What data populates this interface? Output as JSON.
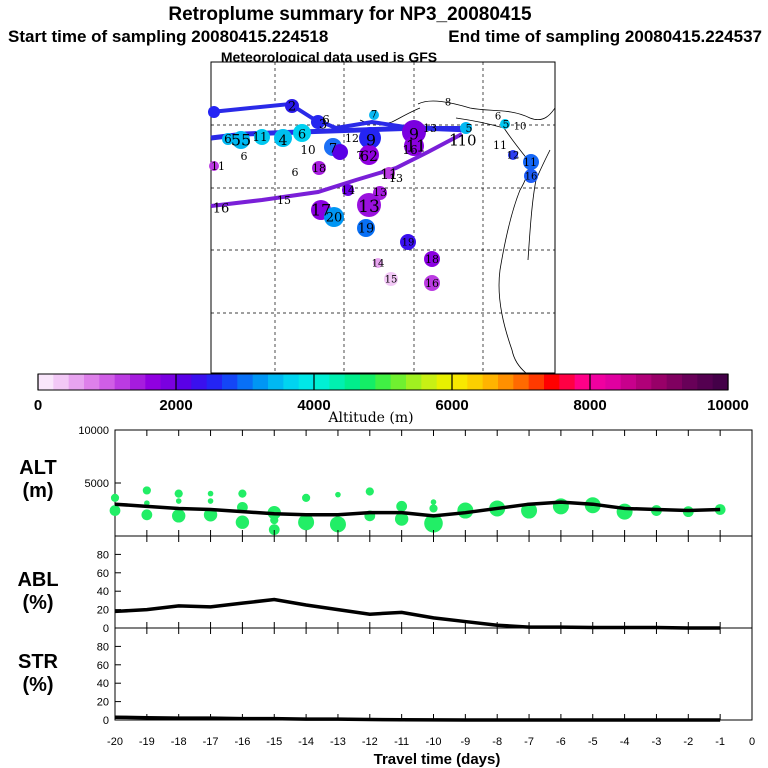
{
  "header": {
    "title": "Retroplume summary for NP3_20080415",
    "start_label": "Start time of sampling 20080415.224518",
    "end_label": "End time of sampling 20080415.224537",
    "met_label": "Meteorological data used is GFS"
  },
  "colors": {
    "path_blue": "#2a2ae8",
    "path_purple": "#7a1fd8",
    "bright_green": "#22ee66",
    "line_black": "#000000"
  },
  "chart_data": [
    {
      "type": "scatter",
      "name": "retroplume-map",
      "title": "Retroplume summary for NP3_20080415",
      "points": [
        {
          "label": "1",
          "lon_idx": 7.0,
          "lat_idx": 8.5,
          "alt": 3000,
          "size": 1
        },
        {
          "label": "2",
          "lon_idx": 6.2,
          "lat_idx": 7.6,
          "alt": 2500,
          "size": 2
        },
        {
          "label": "3",
          "lon_idx": 5.9,
          "lat_idx": 8.4,
          "alt": 2200,
          "size": 2
        },
        {
          "label": "4",
          "lon_idx": 4.5,
          "lat_idx": 7.8,
          "alt": 3300,
          "size": 2
        },
        {
          "label": "5",
          "lon_idx": 1.3,
          "lat_idx": 7.8,
          "alt": 3600,
          "size": 2
        },
        {
          "label": "6",
          "lon_idx": 5.8,
          "lat_idx": 8.2,
          "alt": 3700,
          "size": 1
        },
        {
          "label": "7",
          "lon_idx": 5.3,
          "lat_idx": 7.8,
          "alt": 3200,
          "size": 2
        },
        {
          "label": "8",
          "lon_idx": 6.6,
          "lat_idx": 10.5,
          "alt": 0,
          "size": 0
        },
        {
          "label": "9",
          "lon_idx": 6.8,
          "lat_idx": 8.5,
          "alt": 1500,
          "size": 3
        },
        {
          "label": "10",
          "lon_idx": 7.8,
          "lat_idx": 8.5,
          "alt": 2200,
          "size": 1
        },
        {
          "label": "11",
          "lon_idx": 6.0,
          "lat_idx": 7.0,
          "alt": 1600,
          "size": 2
        },
        {
          "label": "12",
          "lon_idx": 5.5,
          "lat_idx": 7.2,
          "alt": 1600,
          "size": 1
        },
        {
          "label": "13",
          "lon_idx": 4.9,
          "lat_idx": 5.6,
          "alt": 1400,
          "size": 3
        },
        {
          "label": "14",
          "lon_idx": 5.2,
          "lat_idx": 2.6,
          "alt": 700,
          "size": 0
        },
        {
          "label": "15",
          "lon_idx": 5.3,
          "lat_idx": 1.9,
          "alt": 400,
          "size": 0
        },
        {
          "label": "16",
          "lon_idx": 6.2,
          "lat_idx": 1.6,
          "alt": 1600,
          "size": 1
        },
        {
          "label": "17",
          "lon_idx": 4.1,
          "lat_idx": 5.8,
          "alt": 1500,
          "size": 3
        },
        {
          "label": "18",
          "lon_idx": 3.8,
          "lat_idx": 6.4,
          "alt": 1600,
          "size": 1
        },
        {
          "label": "19",
          "lon_idx": 4.6,
          "lat_idx": 4.8,
          "alt": 3200,
          "size": 2
        },
        {
          "label": "20",
          "lon_idx": 4.4,
          "lat_idx": 5.0,
          "alt": 3300,
          "size": 2
        }
      ],
      "map_labels": [
        "1",
        "2",
        "3",
        "4",
        "5",
        "6",
        "7",
        "8",
        "9",
        "10",
        "11",
        "12",
        "13",
        "14",
        "15",
        "16",
        "17",
        "18",
        "19",
        "20",
        "55",
        "6",
        "10",
        "11",
        "6",
        "12",
        "11",
        "10",
        "11",
        "13",
        "11",
        "15",
        "16",
        "18",
        "17",
        "20",
        "6",
        "14",
        "16",
        "13",
        "19",
        "18",
        "19",
        "15",
        "15",
        "16",
        "9",
        "12",
        "7"
      ]
    },
    {
      "type": "colorbar",
      "name": "altitude-colorbar",
      "xlabel": "Altitude (m)",
      "range": [
        0,
        10000
      ],
      "tick_labels": [
        "0",
        "2000",
        "4000",
        "6000",
        "8000",
        "10000"
      ],
      "colors": [
        "#f9e6fb",
        "#f2c8f6",
        "#e8a4f0",
        "#de80ea",
        "#d05ee6",
        "#bb3be2",
        "#a61cde",
        "#9000e0",
        "#7a00e0",
        "#5a00e6",
        "#3a10ee",
        "#2424f4",
        "#1446f6",
        "#0870f6",
        "#0096f4",
        "#00b8f2",
        "#00d4f0",
        "#00e8e8",
        "#00f0d4",
        "#00f0b0",
        "#00ee8c",
        "#14ee66",
        "#40f044",
        "#70f030",
        "#a0f020",
        "#c8f014",
        "#e8f000",
        "#f8e800",
        "#fcd000",
        "#ffb400",
        "#ff9000",
        "#ff6a00",
        "#ff3a00",
        "#ff0000",
        "#ff0044",
        "#ff0088",
        "#f000a0",
        "#e000a0",
        "#c8008c",
        "#b00078",
        "#980068",
        "#800060",
        "#680058",
        "#540050",
        "#440048"
      ]
    },
    {
      "type": "line",
      "name": "alt-panel",
      "ylabel": "ALT\n(m)",
      "ylabel_line1": "ALT",
      "ylabel_line2": "(m)",
      "ylim": [
        0,
        10000
      ],
      "ytick_labels": [
        "10000",
        "5000"
      ],
      "x": [
        -20,
        -19,
        -18,
        -17,
        -16,
        -15,
        -14,
        -13,
        -12,
        -11,
        -10,
        -9,
        -8,
        -7,
        -6,
        -5,
        -4,
        -3,
        -2,
        -1
      ],
      "series": [
        {
          "name": "mean altitude",
          "values": [
            3000,
            2800,
            2600,
            2500,
            2300,
            2100,
            2000,
            2000,
            2200,
            2200,
            1900,
            2200,
            2600,
            3000,
            3200,
            3000,
            2600,
            2500,
            2400,
            2500
          ]
        }
      ],
      "scatter": [
        {
          "x": -20,
          "y": 3600,
          "s": 2
        },
        {
          "x": -20,
          "y": 2400,
          "s": 3
        },
        {
          "x": -19,
          "y": 4300,
          "s": 2
        },
        {
          "x": -19,
          "y": 3100,
          "s": 1
        },
        {
          "x": -19,
          "y": 2000,
          "s": 3
        },
        {
          "x": -18,
          "y": 4000,
          "s": 2
        },
        {
          "x": -18,
          "y": 3300,
          "s": 1
        },
        {
          "x": -18,
          "y": 1900,
          "s": 4
        },
        {
          "x": -17,
          "y": 4000,
          "s": 1
        },
        {
          "x": -17,
          "y": 3300,
          "s": 1
        },
        {
          "x": -17,
          "y": 2000,
          "s": 4
        },
        {
          "x": -16,
          "y": 4000,
          "s": 2
        },
        {
          "x": -16,
          "y": 2700,
          "s": 3
        },
        {
          "x": -16,
          "y": 1300,
          "s": 4
        },
        {
          "x": -15,
          "y": 2200,
          "s": 4
        },
        {
          "x": -15,
          "y": 1500,
          "s": 2
        },
        {
          "x": -15,
          "y": 600,
          "s": 3
        },
        {
          "x": -14,
          "y": 3600,
          "s": 2
        },
        {
          "x": -14,
          "y": 1300,
          "s": 5
        },
        {
          "x": -13,
          "y": 3900,
          "s": 1
        },
        {
          "x": -13,
          "y": 1100,
          "s": 5
        },
        {
          "x": -12,
          "y": 4200,
          "s": 2
        },
        {
          "x": -12,
          "y": 1900,
          "s": 3
        },
        {
          "x": -11,
          "y": 2800,
          "s": 3
        },
        {
          "x": -11,
          "y": 1600,
          "s": 4
        },
        {
          "x": -10,
          "y": 3200,
          "s": 1
        },
        {
          "x": -10,
          "y": 2600,
          "s": 2
        },
        {
          "x": -10,
          "y": 1200,
          "s": 6
        },
        {
          "x": -9,
          "y": 2400,
          "s": 5
        },
        {
          "x": -8,
          "y": 2600,
          "s": 5
        },
        {
          "x": -7,
          "y": 2400,
          "s": 5
        },
        {
          "x": -6,
          "y": 2800,
          "s": 5
        },
        {
          "x": -5,
          "y": 2900,
          "s": 5
        },
        {
          "x": -4,
          "y": 2300,
          "s": 5
        },
        {
          "x": -3,
          "y": 2400,
          "s": 3
        },
        {
          "x": -2,
          "y": 2300,
          "s": 3
        },
        {
          "x": -1,
          "y": 2500,
          "s": 3
        }
      ]
    },
    {
      "type": "line",
      "name": "abl-panel",
      "ylabel_line1": "ABL",
      "ylabel_line2": "(%)",
      "ylim": [
        0,
        100
      ],
      "ytick_labels": [
        "80",
        "60",
        "40",
        "20",
        "0"
      ],
      "x": [
        -20,
        -19,
        -18,
        -17,
        -16,
        -15,
        -14,
        -13,
        -12,
        -11,
        -10,
        -9,
        -8,
        -7,
        -6,
        -5,
        -4,
        -3,
        -2,
        -1
      ],
      "series": [
        {
          "name": "ABL fraction",
          "values": [
            18,
            20,
            24,
            23,
            27,
            31,
            25,
            20,
            15,
            17,
            11,
            7,
            3,
            1,
            1,
            0.5,
            0.5,
            0.5,
            0,
            0
          ]
        }
      ]
    },
    {
      "type": "line",
      "name": "str-panel",
      "ylabel_line1": "STR",
      "ylabel_line2": "(%)",
      "ylim": [
        0,
        100
      ],
      "ytick_labels": [
        "80",
        "60",
        "40",
        "20",
        "0"
      ],
      "x": [
        -20,
        -19,
        -18,
        -17,
        -16,
        -15,
        -14,
        -13,
        -12,
        -11,
        -10,
        -9,
        -8,
        -7,
        -6,
        -5,
        -4,
        -3,
        -2,
        -1
      ],
      "xlabel": "Travel time (days)",
      "xtick_labels": [
        "-20",
        "-19",
        "-18",
        "-17",
        "-16",
        "-15",
        "-14",
        "-13",
        "-12",
        "-11",
        "-10",
        "-9",
        "-8",
        "-7",
        "-6",
        "-5",
        "-4",
        "-3",
        "-2",
        "-1",
        "0"
      ],
      "series": [
        {
          "name": "STR fraction",
          "values": [
            3,
            2.5,
            2,
            2,
            1.5,
            1.5,
            1,
            1,
            0.5,
            0.3,
            0.2,
            0,
            0,
            0,
            0,
            0,
            0,
            0,
            0,
            0
          ]
        }
      ]
    }
  ]
}
